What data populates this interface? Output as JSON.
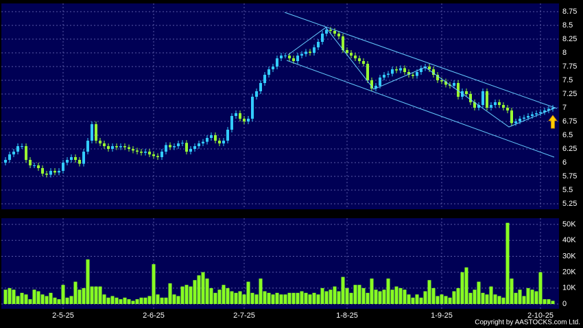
{
  "chart_data": {
    "type": "candlestick",
    "source": "Copyright by AASTOCKS.com Ltd.",
    "categories": [
      null,
      null,
      null,
      null,
      null,
      null,
      null,
      null,
      null,
      null,
      null,
      null,
      null,
      null,
      "2-5-25",
      null,
      null,
      null,
      null,
      null,
      null,
      null,
      null,
      null,
      null,
      null,
      null,
      null,
      null,
      null,
      null,
      null,
      null,
      null,
      null,
      null,
      "2-6-25",
      null,
      null,
      null,
      null,
      null,
      null,
      null,
      null,
      null,
      null,
      null,
      null,
      null,
      null,
      null,
      null,
      null,
      null,
      null,
      null,
      null,
      "2-7-25",
      null,
      null,
      null,
      null,
      null,
      null,
      null,
      null,
      null,
      null,
      null,
      null,
      null,
      null,
      null,
      null,
      null,
      null,
      null,
      null,
      null,
      null,
      null,
      null,
      "1-8-25",
      null,
      null,
      null,
      null,
      null,
      null,
      null,
      null,
      null,
      null,
      null,
      null,
      null,
      null,
      null,
      null,
      null,
      null,
      null,
      null,
      null,
      null,
      "1-9-25",
      null,
      null,
      null,
      null,
      null,
      null,
      null,
      null,
      null,
      null,
      null,
      null,
      null,
      null,
      null,
      null,
      null,
      null,
      null,
      null,
      null,
      null,
      null,
      "2-10-25",
      null,
      null,
      null
    ],
    "open": [
      6.0,
      6.05,
      6.15,
      6.2,
      6.3,
      6.3,
      6.05,
      5.95,
      5.95,
      5.9,
      5.8,
      5.78,
      5.85,
      5.82,
      5.85,
      6.0,
      6.05,
      6.1,
      6.05,
      5.98,
      6.2,
      6.4,
      6.7,
      6.4,
      6.35,
      6.3,
      6.25,
      6.3,
      6.28,
      6.3,
      6.28,
      6.25,
      6.22,
      6.2,
      6.18,
      6.2,
      6.15,
      6.12,
      6.1,
      6.2,
      6.32,
      6.28,
      6.3,
      6.35,
      6.36,
      6.2,
      6.25,
      6.3,
      6.35,
      6.38,
      6.45,
      6.5,
      6.4,
      6.35,
      6.4,
      6.6,
      6.85,
      6.9,
      6.8,
      6.75,
      6.8,
      7.2,
      7.3,
      7.45,
      7.6,
      7.7,
      7.75,
      7.9,
      7.95,
      7.95,
      7.9,
      7.85,
      7.95,
      7.98,
      8.02,
      8.0,
      8.1,
      8.2,
      8.35,
      8.42,
      8.4,
      8.35,
      8.3,
      8.05,
      8.0,
      7.95,
      7.9,
      7.85,
      7.8,
      7.5,
      7.35,
      7.4,
      7.55,
      7.6,
      7.62,
      7.7,
      7.68,
      7.72,
      7.65,
      7.6,
      7.58,
      7.65,
      7.72,
      7.75,
      7.7,
      7.6,
      7.5,
      7.48,
      7.42,
      7.4,
      7.45,
      7.2,
      7.3,
      7.25,
      7.1,
      7.0,
      7.05,
      7.3,
      7.0,
      7.05,
      7.1,
      7.05,
      7.0,
      6.95,
      6.72,
      6.75,
      6.8,
      6.82,
      6.85,
      6.88,
      6.9,
      6.92,
      6.95,
      6.98
    ],
    "high": [
      6.1,
      6.2,
      6.25,
      6.35,
      6.35,
      6.35,
      6.1,
      6.0,
      6.0,
      5.95,
      5.85,
      5.9,
      5.9,
      5.9,
      6.05,
      6.1,
      6.15,
      6.15,
      6.1,
      6.25,
      6.45,
      6.75,
      6.75,
      6.45,
      6.4,
      6.35,
      6.35,
      6.35,
      6.35,
      6.35,
      6.33,
      6.3,
      6.27,
      6.25,
      6.25,
      6.25,
      6.2,
      6.17,
      6.25,
      6.37,
      6.37,
      6.35,
      6.4,
      6.41,
      6.41,
      6.3,
      6.35,
      6.4,
      6.43,
      6.5,
      6.55,
      6.55,
      6.45,
      6.45,
      6.65,
      6.9,
      6.95,
      6.95,
      6.85,
      6.85,
      7.25,
      7.35,
      7.5,
      7.65,
      7.75,
      7.8,
      7.95,
      8.0,
      8.0,
      8.0,
      7.95,
      8.0,
      8.03,
      8.07,
      8.07,
      8.15,
      8.25,
      8.4,
      8.47,
      8.47,
      8.45,
      8.4,
      8.35,
      8.1,
      8.05,
      8.0,
      7.95,
      7.9,
      7.85,
      7.55,
      7.45,
      7.6,
      7.65,
      7.67,
      7.75,
      7.75,
      7.77,
      7.77,
      7.7,
      7.65,
      7.7,
      7.77,
      7.8,
      7.8,
      7.75,
      7.65,
      7.55,
      7.53,
      7.47,
      7.5,
      7.5,
      7.35,
      7.35,
      7.3,
      7.15,
      7.1,
      7.35,
      7.35,
      7.1,
      7.15,
      7.15,
      7.1,
      7.05,
      7.0,
      6.8,
      6.85,
      6.87,
      6.9,
      6.93,
      6.95,
      6.97,
      7.0,
      7.03,
      7.05
    ],
    "low": [
      5.95,
      6.0,
      6.1,
      6.15,
      6.25,
      6.0,
      5.9,
      5.9,
      5.85,
      5.75,
      5.73,
      5.73,
      5.77,
      5.77,
      5.8,
      5.95,
      6.0,
      6.0,
      5.93,
      5.93,
      6.15,
      6.35,
      6.35,
      6.3,
      6.25,
      6.2,
      6.2,
      6.23,
      6.23,
      6.23,
      6.2,
      6.17,
      6.15,
      6.13,
      6.13,
      6.1,
      6.07,
      6.05,
      6.05,
      6.15,
      6.23,
      6.23,
      6.25,
      6.3,
      6.15,
      6.15,
      6.2,
      6.25,
      6.3,
      6.33,
      6.4,
      6.35,
      6.3,
      6.3,
      6.35,
      6.55,
      6.8,
      6.75,
      6.7,
      6.7,
      6.75,
      7.15,
      7.25,
      7.4,
      7.55,
      7.65,
      7.7,
      7.85,
      7.9,
      7.85,
      7.8,
      7.8,
      7.9,
      7.93,
      7.95,
      7.95,
      8.05,
      8.15,
      8.3,
      8.35,
      8.3,
      8.25,
      8.0,
      7.95,
      7.9,
      7.85,
      7.8,
      7.75,
      7.45,
      7.3,
      7.3,
      7.35,
      7.5,
      7.55,
      7.57,
      7.63,
      7.63,
      7.6,
      7.55,
      7.53,
      7.53,
      7.6,
      7.67,
      7.65,
      7.55,
      7.45,
      7.43,
      7.37,
      7.35,
      7.35,
      7.15,
      7.15,
      7.2,
      7.05,
      6.95,
      6.95,
      7.0,
      6.95,
      6.95,
      7.0,
      7.0,
      6.95,
      6.9,
      6.67,
      6.67,
      6.7,
      6.75,
      6.77,
      6.8,
      6.83,
      6.85,
      6.87,
      6.9,
      6.93
    ],
    "close": [
      6.05,
      6.15,
      6.2,
      6.3,
      6.3,
      6.05,
      5.95,
      5.95,
      5.9,
      5.8,
      5.78,
      5.85,
      5.82,
      5.85,
      6.0,
      6.05,
      6.1,
      6.05,
      5.98,
      6.2,
      6.4,
      6.7,
      6.4,
      6.35,
      6.3,
      6.25,
      6.3,
      6.28,
      6.3,
      6.28,
      6.25,
      6.22,
      6.2,
      6.18,
      6.2,
      6.15,
      6.12,
      6.1,
      6.2,
      6.32,
      6.28,
      6.3,
      6.35,
      6.36,
      6.2,
      6.25,
      6.3,
      6.35,
      6.38,
      6.45,
      6.5,
      6.4,
      6.35,
      6.4,
      6.6,
      6.85,
      6.9,
      6.8,
      6.75,
      6.8,
      7.2,
      7.3,
      7.45,
      7.6,
      7.7,
      7.75,
      7.9,
      7.95,
      7.95,
      7.9,
      7.85,
      7.95,
      7.98,
      8.02,
      8.0,
      8.1,
      8.2,
      8.35,
      8.42,
      8.4,
      8.35,
      8.3,
      8.05,
      8.0,
      7.95,
      7.9,
      7.85,
      7.8,
      7.5,
      7.35,
      7.4,
      7.55,
      7.6,
      7.62,
      7.7,
      7.68,
      7.72,
      7.65,
      7.6,
      7.58,
      7.65,
      7.72,
      7.75,
      7.7,
      7.6,
      7.5,
      7.48,
      7.42,
      7.4,
      7.45,
      7.2,
      7.3,
      7.25,
      7.1,
      7.0,
      7.05,
      7.3,
      7.0,
      7.05,
      7.1,
      7.05,
      7.0,
      6.95,
      6.72,
      6.75,
      6.8,
      6.82,
      6.85,
      6.88,
      6.9,
      6.92,
      6.95,
      6.98,
      7.0
    ],
    "up_color": "#33ccff",
    "down_color": "#99ff33",
    "ylim": [
      5.15,
      8.9
    ],
    "yticks": [
      5.25,
      5.5,
      5.75,
      6,
      6.25,
      6.5,
      6.75,
      7,
      7.25,
      7.5,
      7.75,
      8,
      8.25,
      8.5,
      8.75
    ],
    "grid": true,
    "volume": {
      "color": "#88ff22",
      "values": [
        9000,
        10000,
        9000,
        5000,
        7000,
        6000,
        3000,
        9000,
        8000,
        6000,
        5000,
        7000,
        4000,
        3000,
        12000,
        4000,
        5000,
        14000,
        9000,
        10000,
        28000,
        11000,
        11000,
        11000,
        6000,
        4000,
        5000,
        4000,
        3000,
        4000,
        3000,
        2000,
        3000,
        4000,
        4000,
        5000,
        25000,
        6000,
        4000,
        4000,
        13000,
        6000,
        5000,
        11000,
        12000,
        11000,
        15000,
        18000,
        20000,
        16000,
        10000,
        7000,
        9000,
        12000,
        10000,
        8000,
        7000,
        8000,
        6000,
        14000,
        7000,
        6000,
        16000,
        8000,
        7000,
        6000,
        7000,
        6000,
        6000,
        7000,
        7000,
        7000,
        8000,
        7000,
        6000,
        7000,
        6000,
        10000,
        8000,
        9000,
        11000,
        8000,
        17000,
        10000,
        7000,
        12000,
        12000,
        10000,
        7000,
        16000,
        9000,
        8000,
        9000,
        16000,
        9000,
        11000,
        10000,
        9000,
        6000,
        4000,
        6000,
        4000,
        8000,
        15000,
        10000,
        5000,
        6000,
        5000,
        4000,
        8000,
        10000,
        20000,
        23000,
        7000,
        9000,
        14000,
        7000,
        6000,
        11000,
        6000,
        5000,
        4000,
        51000,
        16000,
        7000,
        9000,
        5000,
        10000,
        9000,
        8000,
        20000,
        3000,
        3000,
        2000
      ],
      "ylim": [
        -3000,
        53900
      ],
      "yticks": [
        0,
        {
          "value": 10000,
          "label": "10K"
        },
        {
          "value": 20000,
          "label": "20K"
        },
        {
          "value": 30000,
          "label": "30K"
        },
        {
          "value": 40000,
          "label": "40K"
        },
        {
          "value": 50000,
          "label": "50K"
        }
      ]
    }
  }
}
